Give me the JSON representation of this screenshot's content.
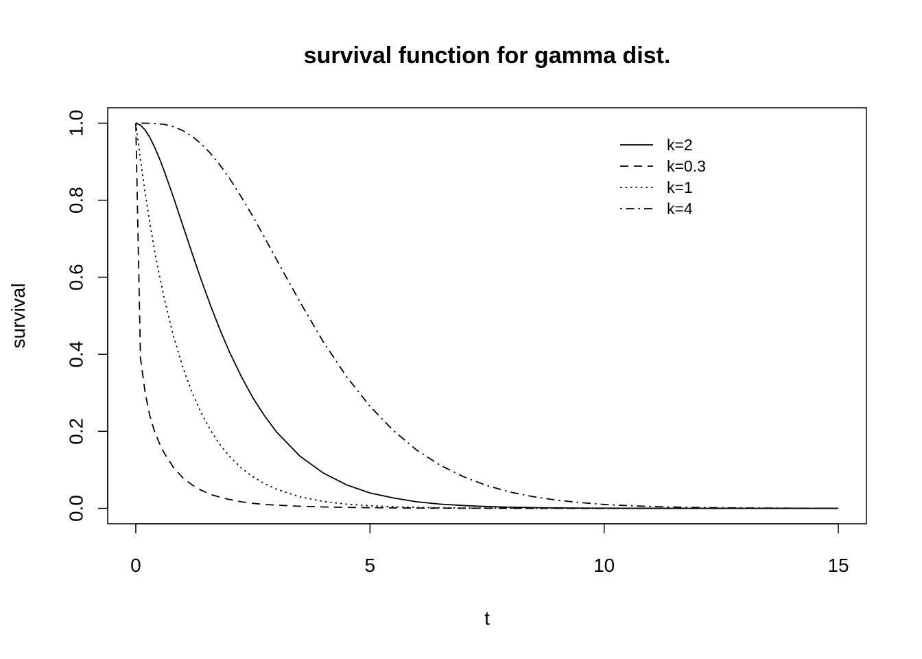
{
  "chart_data": {
    "type": "line",
    "title": "survival function for gamma dist.",
    "xlabel": "t",
    "ylabel": "survival",
    "xlim": [
      -0.6,
      15.6
    ],
    "ylim": [
      -0.04,
      1.04
    ],
    "xticks": [
      0,
      5,
      10,
      15
    ],
    "xtick_labels": [
      "0",
      "5",
      "10",
      "15"
    ],
    "yticks": [
      0.0,
      0.2,
      0.4,
      0.6,
      0.8,
      1.0
    ],
    "ytick_labels": [
      "0.0",
      "0.2",
      "0.4",
      "0.6",
      "0.8",
      "1.0"
    ],
    "grid": false,
    "legend_position": "top-right",
    "x": [
      0,
      0.1,
      0.2,
      0.3,
      0.4,
      0.5,
      0.6,
      0.8,
      1,
      1.2,
      1.4,
      1.6,
      1.8,
      2,
      2.25,
      2.5,
      2.75,
      3,
      3.5,
      4,
      4.5,
      5,
      5.5,
      6,
      6.5,
      7,
      7.5,
      8,
      8.5,
      9,
      9.5,
      10,
      10.5,
      11,
      11.5,
      12,
      12.5,
      13,
      13.5,
      14,
      14.5,
      15
    ],
    "series": [
      {
        "name": "k=2",
        "dash": "solid",
        "values": [
          1,
          0.995,
          0.982,
          0.963,
          0.938,
          0.91,
          0.878,
          0.809,
          0.736,
          0.663,
          0.592,
          0.525,
          0.463,
          0.406,
          0.343,
          0.287,
          0.24,
          0.199,
          0.136,
          0.092,
          0.061,
          0.04,
          0.027,
          0.017,
          0.011,
          0.0073,
          0.0047,
          0.003,
          0.0019,
          0.0012,
          0.0008,
          0.0005,
          0.0003,
          0.0002,
          0.0001,
          0.0001,
          0,
          0,
          0,
          0,
          0,
          0
        ]
      },
      {
        "name": "k=0.3",
        "dash": "dashed",
        "values": [
          1,
          0.39,
          0.3,
          0.24,
          0.2,
          0.17,
          0.145,
          0.107,
          0.08,
          0.061,
          0.047,
          0.036,
          0.029,
          0.023,
          0.017,
          0.013,
          0.01,
          0.0085,
          0.0055,
          0.0037,
          0.0025,
          0.0017,
          0.0012,
          0.0008,
          0.0006,
          0.0004,
          0.0003,
          0.0002,
          0.0001,
          0.0001,
          0,
          0,
          0,
          0,
          0,
          0,
          0,
          0,
          0,
          0,
          0,
          0
        ]
      },
      {
        "name": "k=1",
        "dash": "dotted",
        "values": [
          1,
          0.905,
          0.819,
          0.741,
          0.67,
          0.607,
          0.549,
          0.449,
          0.368,
          0.301,
          0.247,
          0.202,
          0.165,
          0.135,
          0.105,
          0.082,
          0.064,
          0.05,
          0.03,
          0.018,
          0.011,
          0.0067,
          0.0041,
          0.0025,
          0.0015,
          0.0009,
          0.0006,
          0.0003,
          0.0002,
          0.0001,
          0.0001,
          0,
          0,
          0,
          0,
          0,
          0,
          0,
          0,
          0,
          0,
          0
        ]
      },
      {
        "name": "k=4",
        "dash": "dotdash",
        "values": [
          1,
          1.0,
          0.9999,
          0.9997,
          0.9992,
          0.998,
          0.997,
          0.991,
          0.981,
          0.966,
          0.946,
          0.921,
          0.891,
          0.857,
          0.809,
          0.758,
          0.703,
          0.647,
          0.537,
          0.433,
          0.342,
          0.265,
          0.202,
          0.151,
          0.112,
          0.082,
          0.059,
          0.042,
          0.03,
          0.021,
          0.015,
          0.01,
          0.0071,
          0.0049,
          0.0033,
          0.0023,
          0.0015,
          0.001,
          0.0007,
          0.0005,
          0.0003,
          0.0002
        ]
      }
    ]
  }
}
